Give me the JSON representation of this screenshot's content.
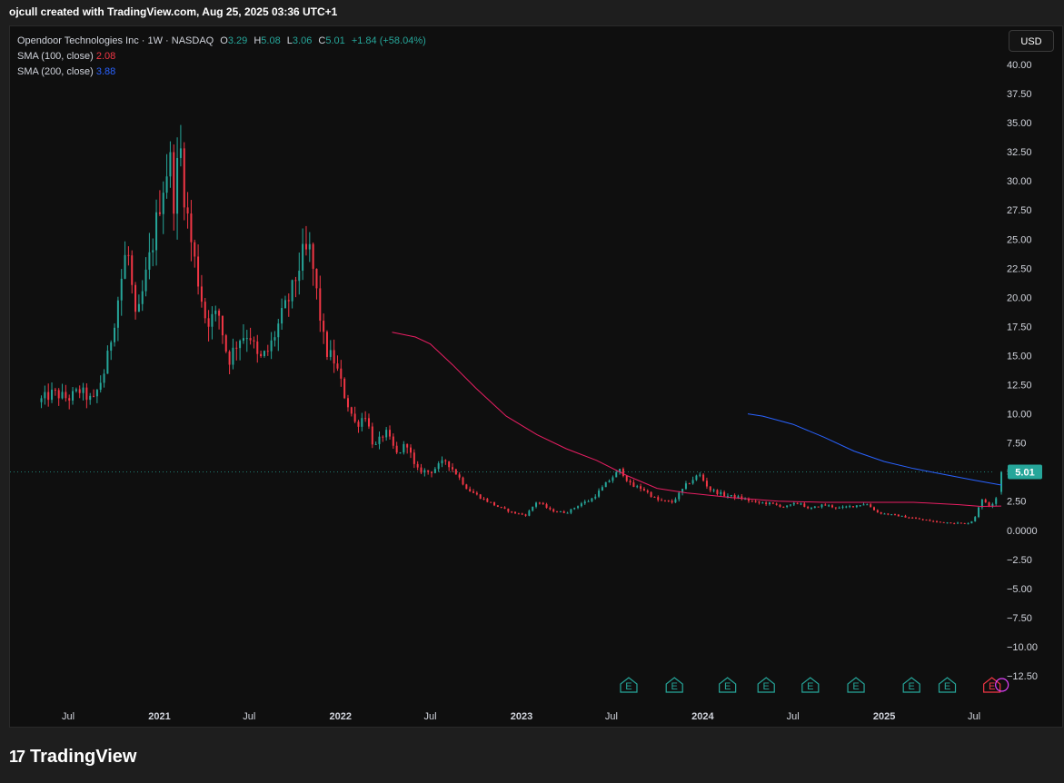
{
  "header": {
    "caption": "ojcull created with TradingView.com, Aug 25, 2025 03:36 UTC+1"
  },
  "legend": {
    "symbol_line": "Opendoor Technologies Inc · 1W · NASDAQ",
    "o_label": "O",
    "o_value": "3.29",
    "h_label": "H",
    "h_value": "5.08",
    "l_label": "L",
    "l_value": "3.06",
    "c_label": "C",
    "c_value": "5.01",
    "change": "+1.84 (+58.04%)",
    "sma100_label": "SMA (100, close)",
    "sma100_value": "2.08",
    "sma200_label": "SMA (200, close)",
    "sma200_value": "3.88"
  },
  "currency_button": "USD",
  "footer": {
    "logo_mark": "17",
    "logo_text": "TradingView"
  },
  "colors": {
    "up": "#26a69a",
    "down": "#f23645",
    "sma100": "#e91e63",
    "sma200": "#2962ff",
    "background": "#0f0f0f",
    "last_price_badge": "#26a69a"
  },
  "chart_data": {
    "type": "candlestick",
    "symbol": "Opendoor Technologies Inc",
    "interval": "1W",
    "exchange": "NASDAQ",
    "currency": "USD",
    "last_price": "5.01",
    "ylim": [
      -13.5,
      41.5
    ],
    "y_ticks": [
      "40.00",
      "37.50",
      "35.00",
      "32.50",
      "30.00",
      "27.50",
      "25.00",
      "22.50",
      "20.00",
      "17.50",
      "15.00",
      "12.50",
      "10.00",
      "7.50",
      "5.00",
      "2.50",
      "0.0000",
      "−2.50",
      "−5.00",
      "−7.50",
      "−10.00",
      "−12.50"
    ],
    "y_tick_values": [
      40,
      37.5,
      35,
      32.5,
      30,
      27.5,
      25,
      22.5,
      20,
      17.5,
      15,
      12.5,
      10,
      7.5,
      5,
      2.5,
      0,
      -2.5,
      -5,
      -7.5,
      -10,
      -12.5
    ],
    "x_ticks": [
      {
        "label": "Jul",
        "date": "2020-07-01",
        "bold": false
      },
      {
        "label": "2021",
        "date": "2021-01-01",
        "bold": true
      },
      {
        "label": "Jul",
        "date": "2021-07-01",
        "bold": false
      },
      {
        "label": "2022",
        "date": "2022-01-01",
        "bold": true
      },
      {
        "label": "Jul",
        "date": "2022-07-01",
        "bold": false
      },
      {
        "label": "2023",
        "date": "2023-01-01",
        "bold": true
      },
      {
        "label": "Jul",
        "date": "2023-07-01",
        "bold": false
      },
      {
        "label": "2024",
        "date": "2024-01-01",
        "bold": true
      },
      {
        "label": "Jul",
        "date": "2024-07-01",
        "bold": false
      },
      {
        "label": "2025",
        "date": "2025-01-01",
        "bold": true
      },
      {
        "label": "Jul",
        "date": "2025-07-01",
        "bold": false
      }
    ],
    "price_path": [
      [
        "2020-05-01",
        11.0
      ],
      [
        "2020-06-01",
        11.8
      ],
      [
        "2020-07-01",
        11.3
      ],
      [
        "2020-07-25",
        12.0
      ],
      [
        "2020-08-20",
        11.0
      ],
      [
        "2020-09-15",
        14.0
      ],
      [
        "2020-10-10",
        20.0
      ],
      [
        "2020-10-28",
        24.5
      ],
      [
        "2020-11-15",
        17.5
      ],
      [
        "2020-12-01",
        21.0
      ],
      [
        "2020-12-20",
        25.0
      ],
      [
        "2021-01-05",
        29.0
      ],
      [
        "2021-01-22",
        32.0
      ],
      [
        "2021-02-01",
        27.5
      ],
      [
        "2021-02-10",
        34.0
      ],
      [
        "2021-02-20",
        29.0
      ],
      [
        "2021-03-05",
        25.0
      ],
      [
        "2021-03-20",
        21.5
      ],
      [
        "2021-04-05",
        18.0
      ],
      [
        "2021-05-01",
        18.5
      ],
      [
        "2021-05-20",
        14.5
      ],
      [
        "2021-06-10",
        16.5
      ],
      [
        "2021-07-01",
        17.0
      ],
      [
        "2021-07-20",
        14.5
      ],
      [
        "2021-08-10",
        15.5
      ],
      [
        "2021-09-01",
        18.0
      ],
      [
        "2021-09-25",
        20.5
      ],
      [
        "2021-10-15",
        23.5
      ],
      [
        "2021-11-01",
        24.0
      ],
      [
        "2021-11-15",
        20.0
      ],
      [
        "2021-12-01",
        15.5
      ],
      [
        "2021-12-20",
        14.5
      ],
      [
        "2022-01-10",
        11.5
      ],
      [
        "2022-02-01",
        9.0
      ],
      [
        "2022-02-20",
        10.0
      ],
      [
        "2022-03-10",
        7.0
      ],
      [
        "2022-04-01",
        8.5
      ],
      [
        "2022-04-25",
        6.5
      ],
      [
        "2022-05-15",
        7.5
      ],
      [
        "2022-06-01",
        5.2
      ],
      [
        "2022-07-01",
        5.0
      ],
      [
        "2022-08-01",
        6.0
      ],
      [
        "2022-08-20",
        5.0
      ],
      [
        "2022-09-15",
        3.5
      ],
      [
        "2022-10-15",
        2.7
      ],
      [
        "2022-11-15",
        2.0
      ],
      [
        "2022-12-15",
        1.5
      ],
      [
        "2023-01-10",
        1.3
      ],
      [
        "2023-02-01",
        2.5
      ],
      [
        "2023-03-01",
        1.7
      ],
      [
        "2023-04-01",
        1.5
      ],
      [
        "2023-05-01",
        2.3
      ],
      [
        "2023-05-20",
        2.6
      ],
      [
        "2023-06-10",
        3.5
      ],
      [
        "2023-07-01",
        4.5
      ],
      [
        "2023-07-20",
        5.2
      ],
      [
        "2023-08-10",
        3.8
      ],
      [
        "2023-09-01",
        3.6
      ],
      [
        "2023-10-01",
        2.6
      ],
      [
        "2023-11-01",
        2.4
      ],
      [
        "2023-12-01",
        4.0
      ],
      [
        "2023-12-25",
        4.8
      ],
      [
        "2024-01-15",
        3.5
      ],
      [
        "2024-02-15",
        3.0
      ],
      [
        "2024-03-15",
        2.8
      ],
      [
        "2024-04-15",
        2.4
      ],
      [
        "2024-05-15",
        2.3
      ],
      [
        "2024-06-15",
        2.0
      ],
      [
        "2024-07-15",
        2.4
      ],
      [
        "2024-08-01",
        1.8
      ],
      [
        "2024-09-01",
        2.2
      ],
      [
        "2024-10-01",
        1.9
      ],
      [
        "2024-11-01",
        2.1
      ],
      [
        "2024-11-25",
        2.3
      ],
      [
        "2024-12-20",
        1.5
      ],
      [
        "2025-01-20",
        1.3
      ],
      [
        "2025-02-20",
        1.1
      ],
      [
        "2025-03-20",
        0.9
      ],
      [
        "2025-04-20",
        0.7
      ],
      [
        "2025-05-20",
        0.65
      ],
      [
        "2025-06-15",
        0.55
      ],
      [
        "2025-07-01",
        0.9
      ],
      [
        "2025-07-15",
        2.6
      ],
      [
        "2025-07-25",
        2.4
      ],
      [
        "2025-08-01",
        2.1
      ],
      [
        "2025-08-11",
        2.5
      ],
      [
        "2025-08-18",
        3.17
      ],
      [
        "2025-08-25",
        5.01
      ]
    ],
    "last_bar": {
      "open": 3.29,
      "high": 5.08,
      "low": 3.06,
      "close": 5.01
    },
    "sma100": [
      [
        "2022-04-15",
        17.0
      ],
      [
        "2022-06-01",
        16.6
      ],
      [
        "2022-07-01",
        16.0
      ],
      [
        "2022-08-15",
        14.2
      ],
      [
        "2022-10-01",
        12.2
      ],
      [
        "2022-12-01",
        9.8
      ],
      [
        "2023-02-01",
        8.2
      ],
      [
        "2023-04-01",
        7.0
      ],
      [
        "2023-06-01",
        6.0
      ],
      [
        "2023-08-01",
        4.7
      ],
      [
        "2023-10-01",
        3.6
      ],
      [
        "2023-12-01",
        3.2
      ],
      [
        "2024-03-01",
        2.8
      ],
      [
        "2024-06-01",
        2.5
      ],
      [
        "2024-09-01",
        2.4
      ],
      [
        "2024-12-01",
        2.4
      ],
      [
        "2025-03-01",
        2.4
      ],
      [
        "2025-06-01",
        2.2
      ],
      [
        "2025-07-15",
        2.05
      ],
      [
        "2025-08-25",
        2.08
      ]
    ],
    "sma200": [
      [
        "2024-04-01",
        10.0
      ],
      [
        "2024-05-01",
        9.8
      ],
      [
        "2024-07-01",
        9.1
      ],
      [
        "2024-09-01",
        8.0
      ],
      [
        "2024-11-01",
        6.8
      ],
      [
        "2025-01-01",
        5.9
      ],
      [
        "2025-03-01",
        5.3
      ],
      [
        "2025-05-01",
        4.8
      ],
      [
        "2025-07-01",
        4.3
      ],
      [
        "2025-08-25",
        3.88
      ]
    ],
    "earnings_markers": [
      {
        "label": "E",
        "date": "2023-08-05",
        "color": "#26a69a"
      },
      {
        "label": "E",
        "date": "2023-11-05",
        "color": "#26a69a"
      },
      {
        "label": "E",
        "date": "2024-02-20",
        "color": "#26a69a"
      },
      {
        "label": "E",
        "date": "2024-05-08",
        "color": "#26a69a"
      },
      {
        "label": "E",
        "date": "2024-08-05",
        "color": "#26a69a"
      },
      {
        "label": "E",
        "date": "2024-11-05",
        "color": "#26a69a"
      },
      {
        "label": "E",
        "date": "2025-02-25",
        "color": "#26a69a"
      },
      {
        "label": "E",
        "date": "2025-05-08",
        "color": "#26a69a"
      },
      {
        "label": "E",
        "date": "2025-08-06",
        "color": "#f23645"
      }
    ]
  }
}
